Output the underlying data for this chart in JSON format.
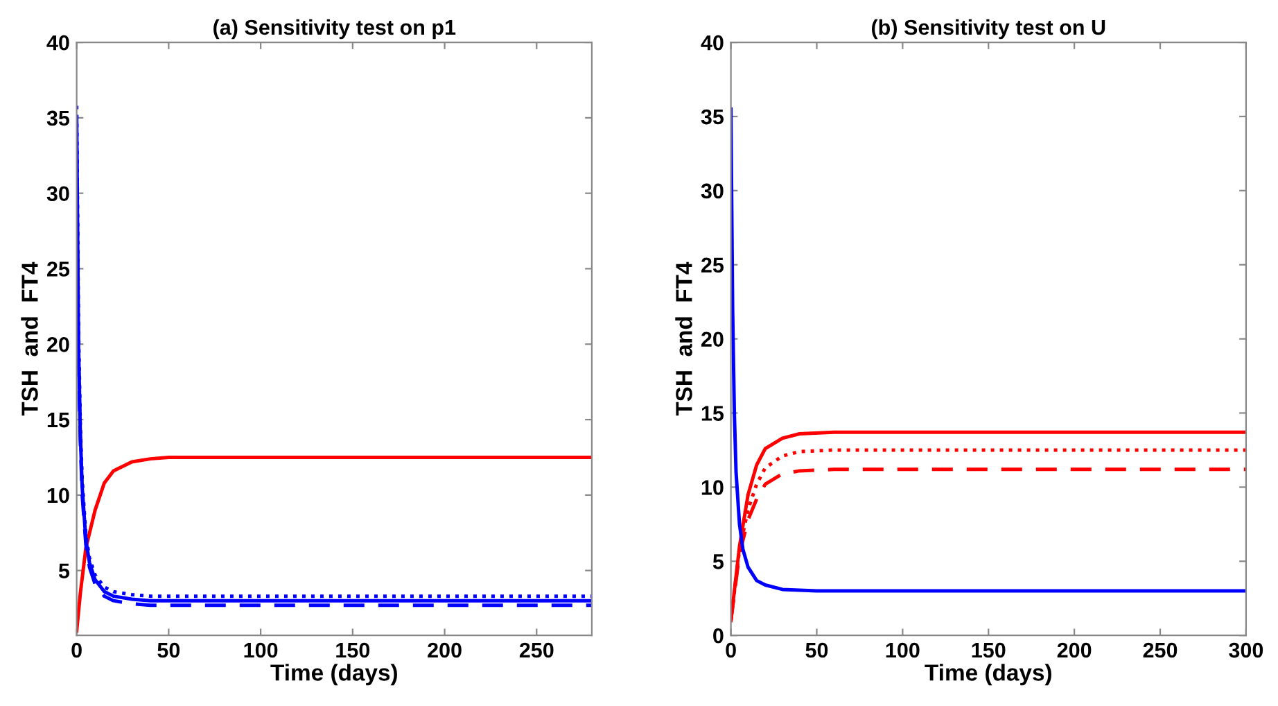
{
  "chart_data": [
    {
      "type": "line",
      "title": "(a) Sensitivity test on p1",
      "xlabel": "Time (days)",
      "ylabel": "TSH  and  FT4",
      "xlim": [
        0,
        280
      ],
      "xticks": [
        0,
        50,
        100,
        150,
        200,
        250
      ],
      "ylim": [
        0.7,
        40
      ],
      "yticks": [
        5,
        10,
        15,
        20,
        25,
        30,
        35,
        40
      ],
      "grid": false,
      "legend": false,
      "marker": "none",
      "series": [
        {
          "color": "#ff0000",
          "line_style": "solid",
          "x": [
            0,
            2,
            5,
            10,
            15,
            20,
            30,
            40,
            50,
            70,
            280
          ],
          "values": [
            1,
            3.5,
            6.5,
            9,
            10.8,
            11.6,
            12.2,
            12.4,
            12.5,
            12.5,
            12.5
          ]
        },
        {
          "color": "#0000ff",
          "line_style": "solid",
          "x": [
            0,
            1,
            2,
            3,
            5,
            7,
            10,
            15,
            20,
            30,
            40,
            280
          ],
          "values": [
            35,
            20,
            14,
            10.5,
            7,
            5.5,
            4.4,
            3.6,
            3.3,
            3.1,
            3.0,
            3.0
          ]
        },
        {
          "color": "#0000ff",
          "line_style": "dotted",
          "x": [
            0,
            1,
            2,
            3,
            5,
            7,
            10,
            15,
            20,
            30,
            40,
            280
          ],
          "values": [
            35.8,
            21,
            14.5,
            11,
            7.3,
            5.8,
            4.7,
            3.9,
            3.6,
            3.4,
            3.3,
            3.3
          ]
        },
        {
          "color": "#0000ff",
          "line_style": "dashed",
          "x": [
            0,
            1,
            2,
            3,
            5,
            7,
            10,
            15,
            20,
            30,
            40,
            280
          ],
          "values": [
            33,
            19,
            13.5,
            10,
            6.7,
            5.2,
            4.1,
            3.3,
            3.0,
            2.8,
            2.7,
            2.7
          ]
        }
      ]
    },
    {
      "type": "line",
      "title": "(b) Sensitivity test on U",
      "xlabel": "Time (days)",
      "ylabel": "TSH  and  FT4",
      "xlim": [
        0,
        300
      ],
      "xticks": [
        0,
        50,
        100,
        150,
        200,
        250,
        300
      ],
      "ylim": [
        0,
        40
      ],
      "yticks": [
        0,
        5,
        10,
        15,
        20,
        25,
        30,
        35,
        40
      ],
      "grid": false,
      "legend": false,
      "marker": "none",
      "series": [
        {
          "color": "#ff0000",
          "line_style": "solid",
          "x": [
            0,
            5,
            10,
            15,
            20,
            30,
            40,
            60,
            300
          ],
          "values": [
            1,
            6,
            9.5,
            11.5,
            12.6,
            13.3,
            13.6,
            13.7,
            13.7
          ]
        },
        {
          "color": "#ff0000",
          "line_style": "dotted",
          "x": [
            0,
            5,
            10,
            15,
            20,
            30,
            40,
            60,
            300
          ],
          "values": [
            1,
            5.8,
            8.5,
            10.2,
            11.3,
            12.1,
            12.4,
            12.5,
            12.5
          ]
        },
        {
          "color": "#ff0000",
          "line_style": "dashed",
          "x": [
            0,
            5,
            10,
            15,
            20,
            30,
            40,
            60,
            300
          ],
          "values": [
            1,
            5.5,
            7.8,
            9.2,
            10.2,
            10.9,
            11.1,
            11.2,
            11.2
          ]
        },
        {
          "color": "#0000ff",
          "line_style": "solid",
          "x": [
            0,
            1,
            2,
            3,
            5,
            7,
            10,
            15,
            20,
            30,
            50,
            300
          ],
          "values": [
            35.5,
            22,
            15,
            11,
            7.5,
            5.8,
            4.6,
            3.7,
            3.4,
            3.1,
            3.0,
            3.0
          ]
        }
      ]
    }
  ]
}
